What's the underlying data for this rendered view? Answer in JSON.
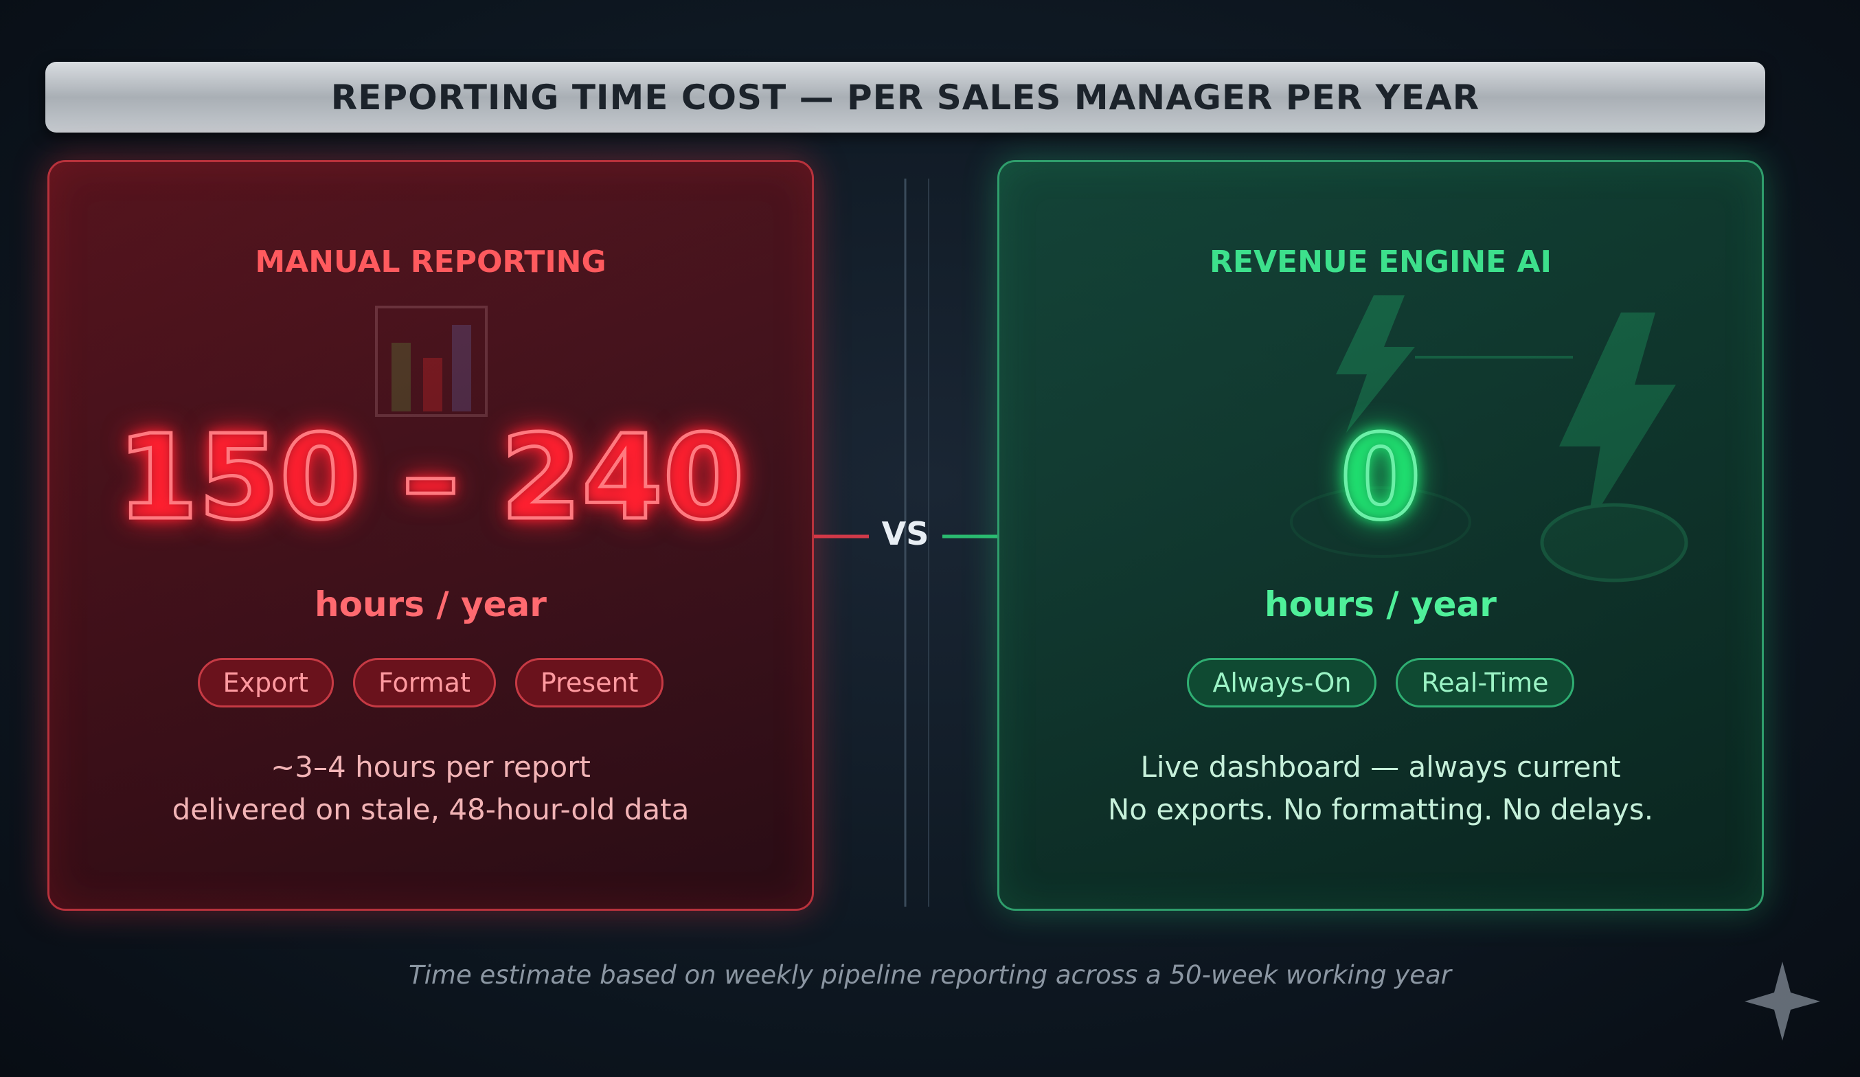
{
  "header": {
    "title": "REPORTING TIME COST — PER SALES MANAGER PER YEAR"
  },
  "panels": [
    {
      "title": "MANUAL REPORTING",
      "value": "150 – 240",
      "unit": "hours / year",
      "tags": [
        "Export",
        "Format",
        "Present"
      ],
      "description": [
        "~3–4 hours per report",
        "delivered on stale, 48-hour-old data"
      ]
    },
    {
      "title": "REVENUE ENGINE AI",
      "value": "0",
      "unit": "hours / year",
      "tags": [
        "Always-On",
        "Real-Time"
      ],
      "description": [
        "Live dashboard — always current",
        "No exports. No formatting. No delays."
      ]
    }
  ],
  "divider": "VS",
  "footnote": "Time estimate based on weekly pipeline reporting across a 50-week working year"
}
